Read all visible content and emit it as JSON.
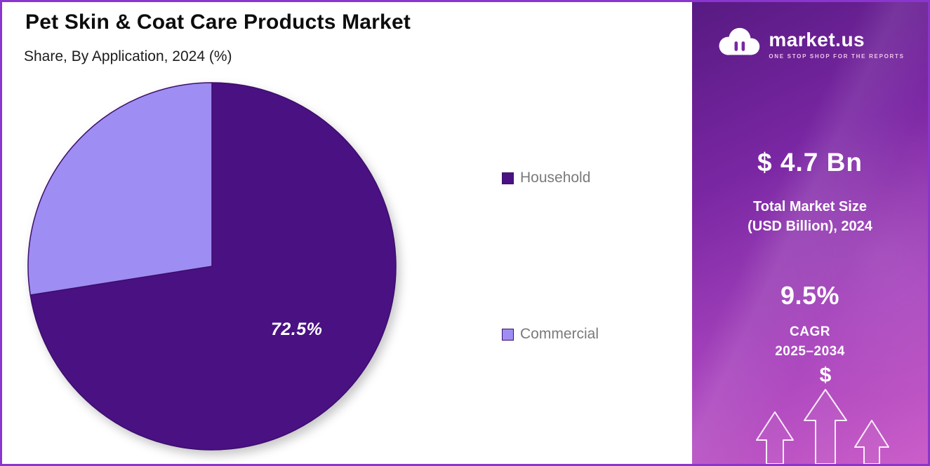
{
  "title": "Pet Skin & Coat Care Products Market",
  "subtitle": "Share, By Application, 2024 (%)",
  "chart_data": {
    "type": "pie",
    "title": "Pet Skin & Coat Care Products Market",
    "subtitle": "Share, By Application, 2024 (%)",
    "labels": [
      "Household",
      "Commercial"
    ],
    "values": [
      72.5,
      27.5
    ],
    "colors": [
      "#4a1183",
      "#9e8df2"
    ],
    "data_labels": [
      "72.5%",
      ""
    ],
    "start_angle_deg": 0,
    "direction": "clockwise",
    "legend_position": "right"
  },
  "legend": {
    "items": [
      {
        "label": "Household",
        "color": "#4a1183"
      },
      {
        "label": "Commercial",
        "color": "#9e8df2"
      }
    ]
  },
  "sidebar": {
    "logo": {
      "brand": "market.us",
      "tagline": "ONE STOP SHOP FOR THE REPORTS"
    },
    "market_size_value": "$ 4.7 Bn",
    "market_size_label_line1": "Total Market Size",
    "market_size_label_line2": "(USD Billion), 2024",
    "cagr_value": "9.5%",
    "cagr_label_line1": "CAGR",
    "cagr_label_line2": "2025–2034",
    "dollar_symbol": "$"
  },
  "colors": {
    "border": "#8b35cf",
    "household_slice": "#4a1183",
    "commercial_slice": "#9e8df2",
    "panel_top": "#571a82",
    "panel_bottom": "#cb5ec9"
  }
}
